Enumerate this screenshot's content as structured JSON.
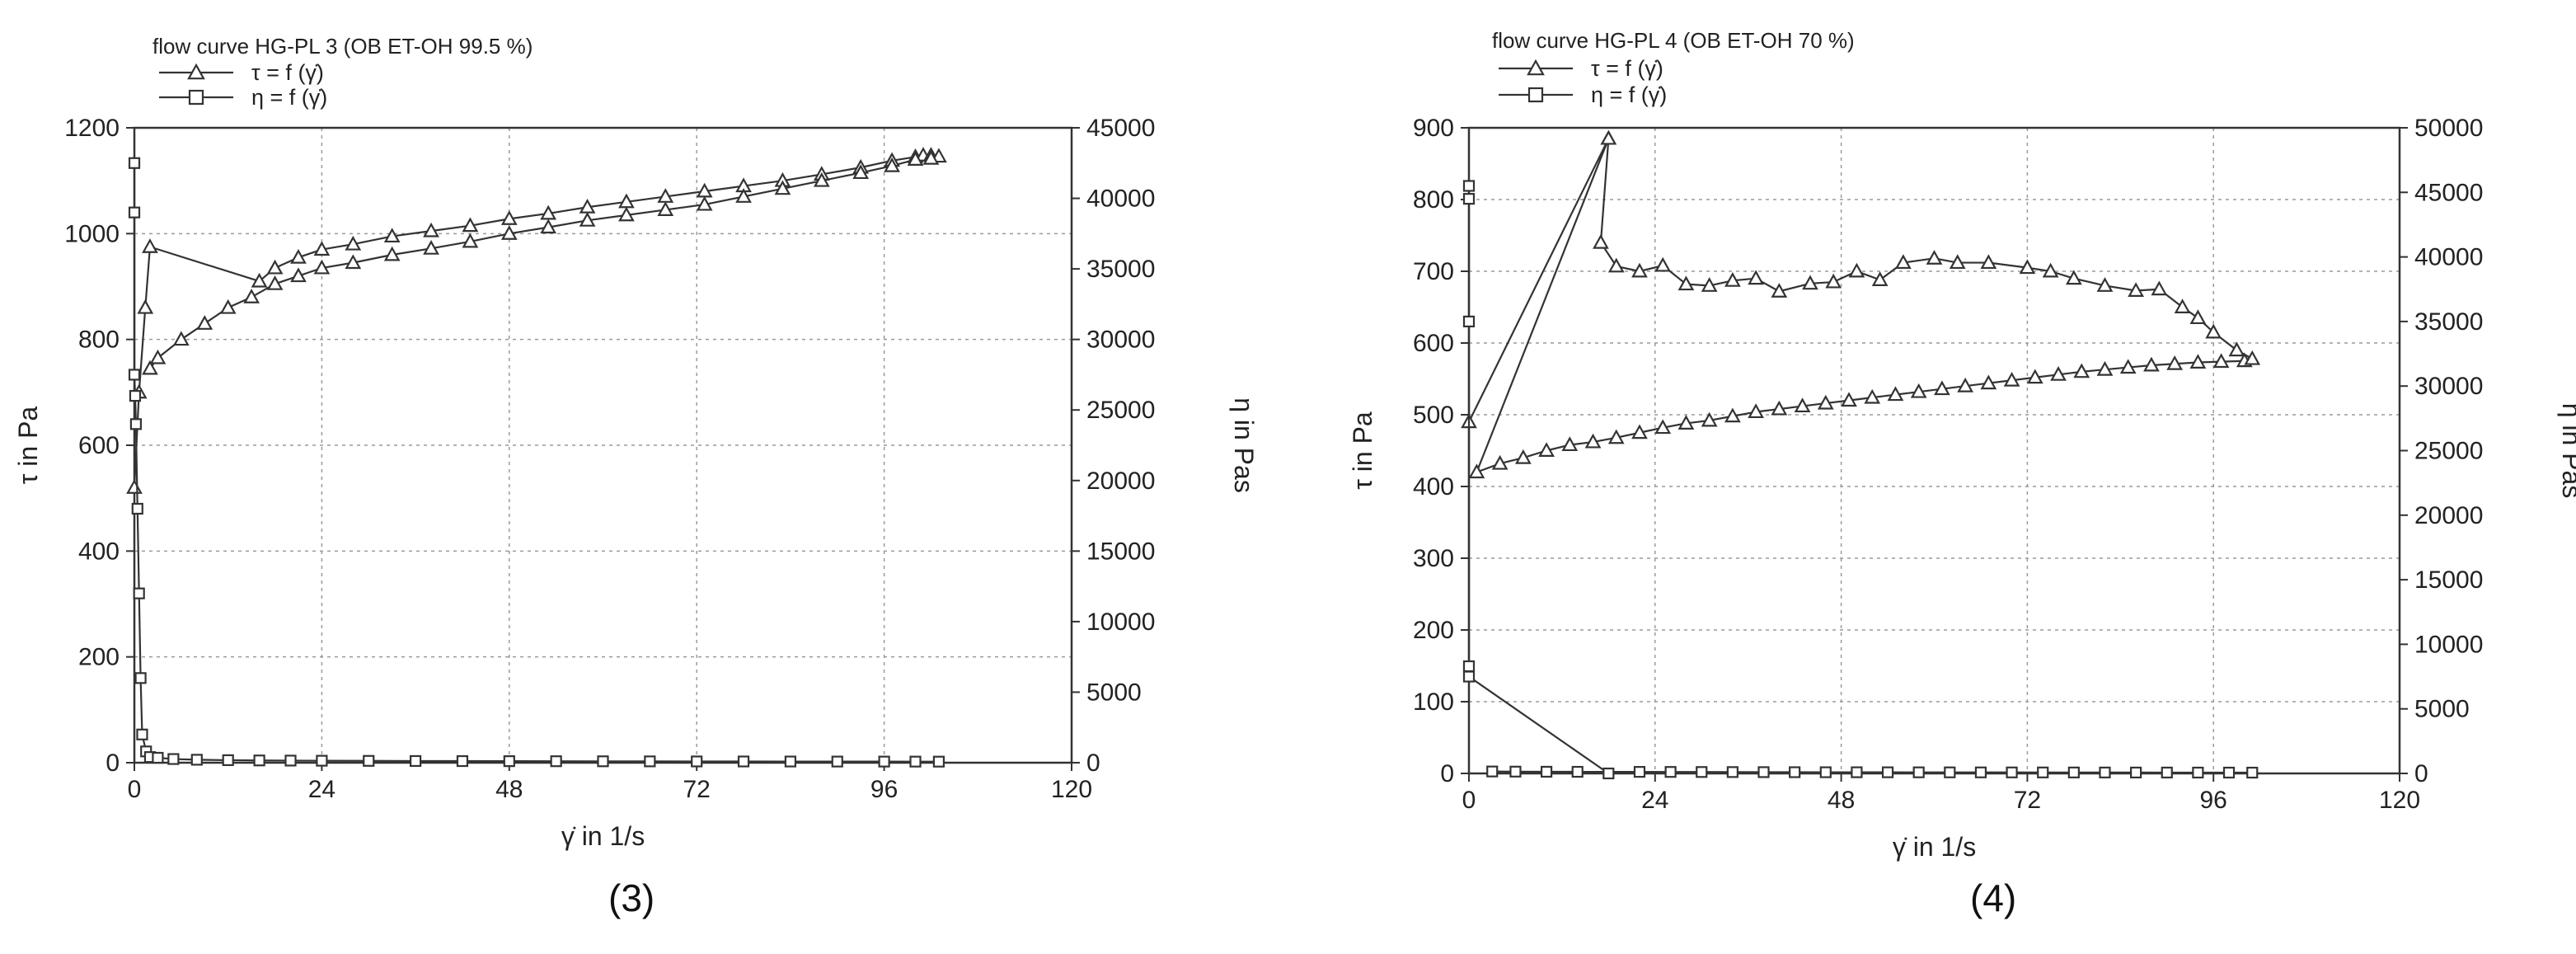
{
  "chart_data": [
    {
      "type": "line",
      "panel_label": "(3)",
      "title": "flow curve HG-PL 3 (OB ET-OH 99.5 %)",
      "xlabel": "γ̇ in 1/s",
      "ylabel": "τ in Pa",
      "y2label": "η in Pas",
      "xlim": [
        0,
        120
      ],
      "ylim": [
        0,
        1200
      ],
      "y2lim": [
        0,
        45000
      ],
      "xticks": [
        "0",
        "24",
        "48",
        "72",
        "96",
        "120"
      ],
      "yticks": [
        "0",
        "200",
        "400",
        "600",
        "800",
        "1000",
        "1200"
      ],
      "y2ticks": [
        "0",
        "5000",
        "10000",
        "15000",
        "20000",
        "25000",
        "30000",
        "35000",
        "40000",
        "45000"
      ],
      "grid": true,
      "legend_placement": "top-left",
      "series": [
        {
          "name": "τ = f (γ̇)",
          "axis": "left",
          "marker": "triangle",
          "points": [
            [
              0,
              520
            ],
            [
              0.6,
              700
            ],
            [
              1.4,
              860
            ],
            [
              2,
              975
            ],
            [
              16,
              910
            ],
            [
              18,
              935
            ],
            [
              21,
              955
            ],
            [
              24,
              970
            ],
            [
              28,
              980
            ],
            [
              33,
              995
            ],
            [
              38,
              1005
            ],
            [
              43,
              1015
            ],
            [
              48,
              1028
            ],
            [
              53,
              1038
            ],
            [
              58,
              1050
            ],
            [
              63,
              1060
            ],
            [
              68,
              1070
            ],
            [
              73,
              1080
            ],
            [
              78,
              1090
            ],
            [
              83,
              1100
            ],
            [
              88,
              1112
            ],
            [
              93,
              1125
            ],
            [
              97,
              1138
            ],
            [
              100,
              1145
            ],
            [
              101,
              1148
            ],
            [
              102,
              1148
            ],
            [
              103,
              1146
            ],
            [
              102,
              1142
            ],
            [
              100,
              1140
            ],
            [
              97,
              1128
            ],
            [
              93,
              1115
            ],
            [
              88,
              1100
            ],
            [
              83,
              1085
            ],
            [
              78,
              1070
            ],
            [
              73,
              1055
            ],
            [
              68,
              1045
            ],
            [
              63,
              1035
            ],
            [
              58,
              1025
            ],
            [
              53,
              1012
            ],
            [
              48,
              1000
            ],
            [
              43,
              985
            ],
            [
              38,
              972
            ],
            [
              33,
              960
            ],
            [
              28,
              945
            ],
            [
              24,
              935
            ],
            [
              21,
              920
            ],
            [
              18,
              905
            ],
            [
              15,
              880
            ],
            [
              12,
              860
            ],
            [
              9,
              830
            ],
            [
              6,
              800
            ],
            [
              3,
              765
            ],
            [
              2,
              745
            ]
          ]
        },
        {
          "name": "η = f (γ̇)",
          "axis": "right",
          "marker": "square",
          "points": [
            [
              0,
              42500
            ],
            [
              0,
              39000
            ],
            [
              0,
              27500
            ],
            [
              0.1,
              26000
            ],
            [
              0.2,
              24000
            ],
            [
              0.4,
              18000
            ],
            [
              0.6,
              12000
            ],
            [
              0.8,
              6000
            ],
            [
              1,
              2000
            ],
            [
              1.5,
              800
            ],
            [
              2,
              400
            ],
            [
              3,
              350
            ],
            [
              5,
              260
            ],
            [
              8,
              210
            ],
            [
              12,
              180
            ],
            [
              16,
              160
            ],
            [
              20,
              150
            ],
            [
              24,
              140
            ],
            [
              30,
              130
            ],
            [
              36,
              120
            ],
            [
              42,
              115
            ],
            [
              48,
              110
            ],
            [
              54,
              105
            ],
            [
              60,
              100
            ],
            [
              66,
              95
            ],
            [
              72,
              90
            ],
            [
              78,
              88
            ],
            [
              84,
              85
            ],
            [
              90,
              82
            ],
            [
              96,
              80
            ],
            [
              100,
              78
            ],
            [
              103,
              76
            ]
          ]
        }
      ]
    },
    {
      "type": "line",
      "panel_label": "(4)",
      "title": "flow curve HG-PL 4 (OB ET-OH 70 %)",
      "xlabel": "γ̇ in 1/s",
      "ylabel": "τ in Pa",
      "y2label": "η in Pas",
      "xlim": [
        0,
        120
      ],
      "ylim": [
        0,
        900
      ],
      "y2lim": [
        0,
        50000
      ],
      "xticks": [
        "0",
        "24",
        "48",
        "72",
        "96",
        "120"
      ],
      "yticks": [
        "0",
        "100",
        "200",
        "300",
        "400",
        "500",
        "600",
        "700",
        "800",
        "900"
      ],
      "y2ticks": [
        "0",
        "5000",
        "10000",
        "15000",
        "20000",
        "25000",
        "30000",
        "35000",
        "40000",
        "45000",
        "50000"
      ],
      "grid": true,
      "legend_placement": "top-left",
      "series": [
        {
          "name": "τ = f (γ̇)",
          "axis": "left",
          "marker": "triangle",
          "points": [
            [
              0,
              490
            ],
            [
              18,
              885
            ],
            [
              1,
              420
            ],
            [
              4,
              432
            ],
            [
              7,
              440
            ],
            [
              10,
              450
            ],
            [
              13,
              458
            ],
            [
              16,
              462
            ],
            [
              19,
              468
            ],
            [
              22,
              475
            ],
            [
              25,
              482
            ],
            [
              28,
              488
            ],
            [
              31,
              492
            ],
            [
              34,
              498
            ],
            [
              37,
              504
            ],
            [
              40,
              508
            ],
            [
              43,
              512
            ],
            [
              46,
              516
            ],
            [
              49,
              520
            ],
            [
              52,
              524
            ],
            [
              55,
              528
            ],
            [
              58,
              532
            ],
            [
              61,
              536
            ],
            [
              64,
              540
            ],
            [
              67,
              544
            ],
            [
              70,
              548
            ],
            [
              73,
              552
            ],
            [
              76,
              556
            ],
            [
              79,
              560
            ],
            [
              82,
              563
            ],
            [
              85,
              566
            ],
            [
              88,
              569
            ],
            [
              91,
              571
            ],
            [
              94,
              573
            ],
            [
              97,
              574
            ],
            [
              100,
              575
            ],
            [
              101,
              578
            ],
            [
              99,
              590
            ],
            [
              96,
              615
            ],
            [
              94,
              635
            ],
            [
              92,
              650
            ],
            [
              89,
              675
            ],
            [
              86,
              673
            ],
            [
              82,
              680
            ],
            [
              78,
              690
            ],
            [
              75,
              700
            ],
            [
              72,
              705
            ],
            [
              67,
              712
            ],
            [
              63,
              712
            ],
            [
              60,
              718
            ],
            [
              56,
              712
            ],
            [
              53,
              688
            ],
            [
              50,
              700
            ],
            [
              47,
              685
            ],
            [
              44,
              683
            ],
            [
              40,
              672
            ],
            [
              37,
              690
            ],
            [
              34,
              687
            ],
            [
              31,
              680
            ],
            [
              28,
              682
            ],
            [
              25,
              708
            ],
            [
              22,
              700
            ],
            [
              19,
              707
            ],
            [
              17,
              740
            ],
            [
              18,
              885
            ]
          ]
        },
        {
          "name": "η = f (γ̇)",
          "axis": "right",
          "marker": "square",
          "points": [
            [
              0,
              45500
            ],
            [
              0,
              44500
            ],
            [
              0,
              35000
            ],
            [
              0,
              8300
            ],
            [
              0,
              7500
            ],
            [
              18,
              0
            ],
            [
              3,
              150
            ],
            [
              6,
              140
            ],
            [
              10,
              130
            ],
            [
              14,
              125
            ],
            [
              22,
              120
            ],
            [
              26,
              115
            ],
            [
              30,
              110
            ],
            [
              34,
              105
            ],
            [
              38,
              100
            ],
            [
              42,
              95
            ],
            [
              46,
              92
            ],
            [
              50,
              90
            ],
            [
              54,
              88
            ],
            [
              58,
              85
            ],
            [
              62,
              82
            ],
            [
              66,
              80
            ],
            [
              70,
              78
            ],
            [
              74,
              76
            ],
            [
              78,
              74
            ],
            [
              82,
              72
            ],
            [
              86,
              70
            ],
            [
              90,
              68
            ],
            [
              94,
              66
            ],
            [
              98,
              64
            ],
            [
              101,
              62
            ]
          ]
        }
      ]
    }
  ]
}
